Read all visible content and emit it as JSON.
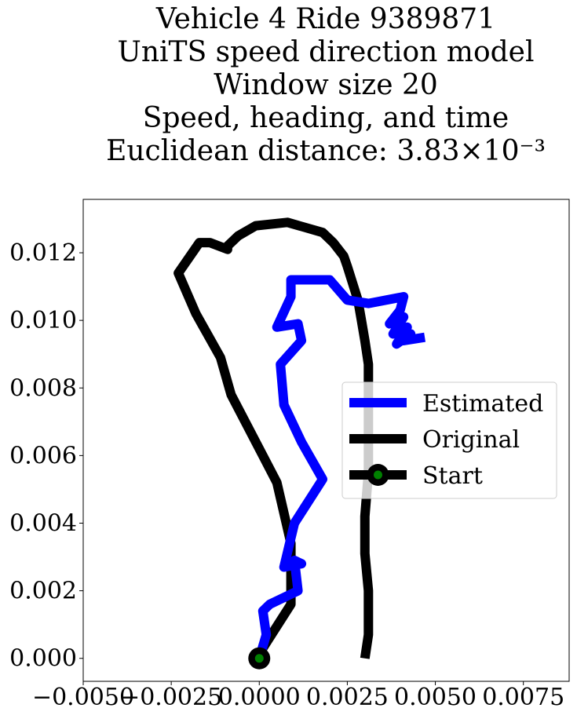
{
  "chart_data": {
    "type": "line",
    "title_lines": [
      "Vehicle 4 Ride 9389871",
      "UniTS speed direction model",
      "Window size 20",
      "Speed, heading, and time",
      "Euclidean distance: 3.83×10⁻³"
    ],
    "xlabel": "",
    "ylabel": "",
    "xlim": [
      -0.005,
      0.0088
    ],
    "ylim": [
      -0.00068,
      0.01358
    ],
    "x_ticks": [
      -0.005,
      -0.0025,
      0.0,
      0.0025,
      0.005,
      0.0075
    ],
    "x_tick_labels": [
      "−0.0050",
      "−0.0025",
      "0.0000",
      "0.0025",
      "0.0050",
      "0.0075"
    ],
    "y_ticks": [
      0.0,
      0.002,
      0.004,
      0.006,
      0.008,
      0.01,
      0.012
    ],
    "y_tick_labels": [
      "0.000",
      "0.002",
      "0.004",
      "0.006",
      "0.008",
      "0.010",
      "0.012"
    ],
    "grid": false,
    "legend_position": "center-right",
    "series": [
      {
        "name": "Estimated",
        "color": "#0000ff",
        "x": [
          0.0,
          0.0002,
          0.0001,
          0.0003,
          0.0011,
          0.001,
          0.0012,
          0.0007,
          0.001,
          0.0018,
          0.0012,
          0.0007,
          0.0006,
          0.0012,
          0.0011,
          0.0005,
          0.0009,
          0.0009,
          0.002,
          0.0025,
          0.0031,
          0.0041,
          0.004,
          0.0037,
          0.0041,
          0.0038,
          0.0042,
          0.0039,
          0.0043,
          0.0041,
          0.0047
        ],
        "y": [
          0.0,
          0.0007,
          0.0014,
          0.0016,
          0.002,
          0.0029,
          0.0028,
          0.0027,
          0.004,
          0.0053,
          0.0064,
          0.0075,
          0.0087,
          0.0094,
          0.0099,
          0.0098,
          0.0107,
          0.0112,
          0.0112,
          0.0106,
          0.0105,
          0.0107,
          0.0103,
          0.0099,
          0.0101,
          0.0096,
          0.0098,
          0.0093,
          0.0096,
          0.0094,
          0.0095
        ]
      },
      {
        "name": "Original",
        "color": "#000000",
        "x": [
          0.003,
          0.0031,
          0.0031,
          0.0031,
          0.003,
          0.003,
          0.0031,
          0.0031,
          0.0031,
          0.0031,
          0.0031,
          0.0031,
          0.003,
          0.0029,
          0.0028,
          0.0025,
          0.0024,
          0.0021,
          0.0018,
          0.0008,
          -0.0001,
          -0.0006,
          -0.0009,
          -0.0009,
          -0.0014,
          -0.0017,
          -0.0023,
          -0.0018,
          -0.0011,
          -0.0008,
          0.0001,
          0.0005,
          0.0009,
          0.0009,
          0.0001,
          0.0
        ],
        "y": [
          0.0,
          0.0007,
          0.0017,
          0.002,
          0.0031,
          0.0042,
          0.0055,
          0.006,
          0.0067,
          0.0076,
          0.0082,
          0.0087,
          0.0094,
          0.01,
          0.0106,
          0.0116,
          0.0119,
          0.0123,
          0.0126,
          0.0129,
          0.0128,
          0.0125,
          0.0122,
          0.0121,
          0.0123,
          0.0123,
          0.0114,
          0.0102,
          0.0089,
          0.0078,
          0.006,
          0.0052,
          0.0034,
          0.0016,
          0.0003,
          0.0
        ]
      },
      {
        "name": "Start",
        "color": "#000000",
        "marker_color": "#008000",
        "x": [
          0.0
        ],
        "y": [
          0.0
        ]
      }
    ]
  }
}
